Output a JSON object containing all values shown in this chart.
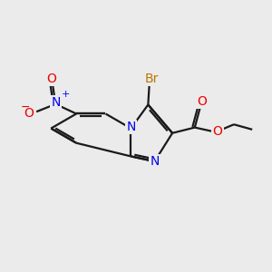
{
  "background_color": "#ebebeb",
  "bond_color": "#1a1a1a",
  "bond_width": 1.6,
  "atom_colors": {
    "N": "#0000ee",
    "O": "#ee0000",
    "Br": "#bb7700",
    "C": "#1a1a1a"
  },
  "font_size_N": 10,
  "font_size_O": 10,
  "font_size_Br": 10,
  "figsize": [
    3.0,
    3.0
  ],
  "dpi": 100,
  "xlim": [
    0.0,
    10.5
  ],
  "ylim": [
    3.0,
    9.5
  ]
}
